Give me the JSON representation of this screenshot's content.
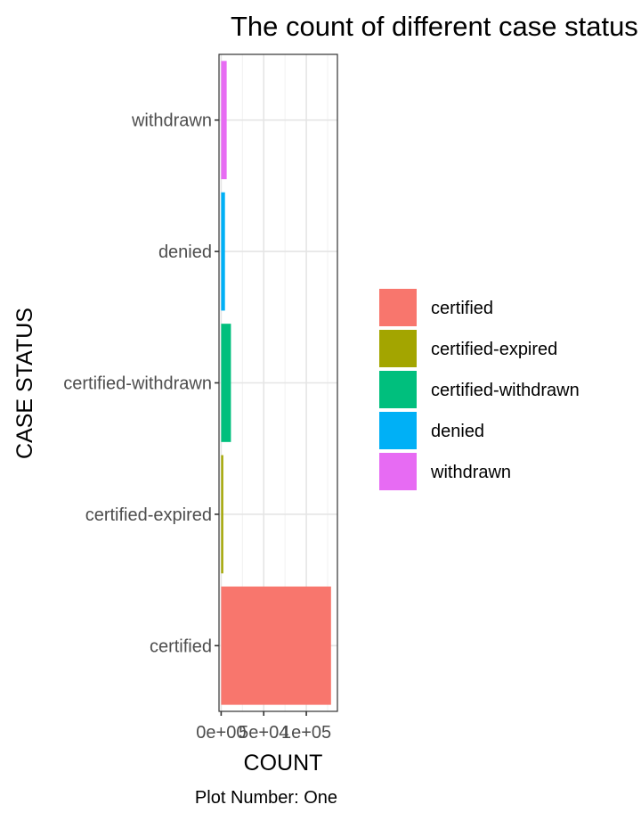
{
  "chart_data": {
    "type": "bar",
    "orientation": "horizontal",
    "title": "The count of different case status",
    "xlabel": "COUNT",
    "ylabel": "CASE STATUS",
    "caption": "Plot Number: One",
    "categories": [
      "certified",
      "certified-expired",
      "certified-withdrawn",
      "denied",
      "withdrawn"
    ],
    "values": [
      129000,
      2500,
      11500,
      4500,
      6500
    ],
    "colors": [
      "#F8766D",
      "#A3A500",
      "#00BF7D",
      "#00B0F6",
      "#E76BF3"
    ],
    "xlim": [
      -2500,
      136500
    ],
    "x_ticks": [
      0,
      50000,
      100000
    ],
    "x_tick_labels": [
      "0e+00",
      "5e+04",
      "1e+05"
    ],
    "grid": true,
    "legend": {
      "position": "right",
      "entries": [
        "certified",
        "certified-expired",
        "certified-withdrawn",
        "denied",
        "withdrawn"
      ]
    }
  }
}
